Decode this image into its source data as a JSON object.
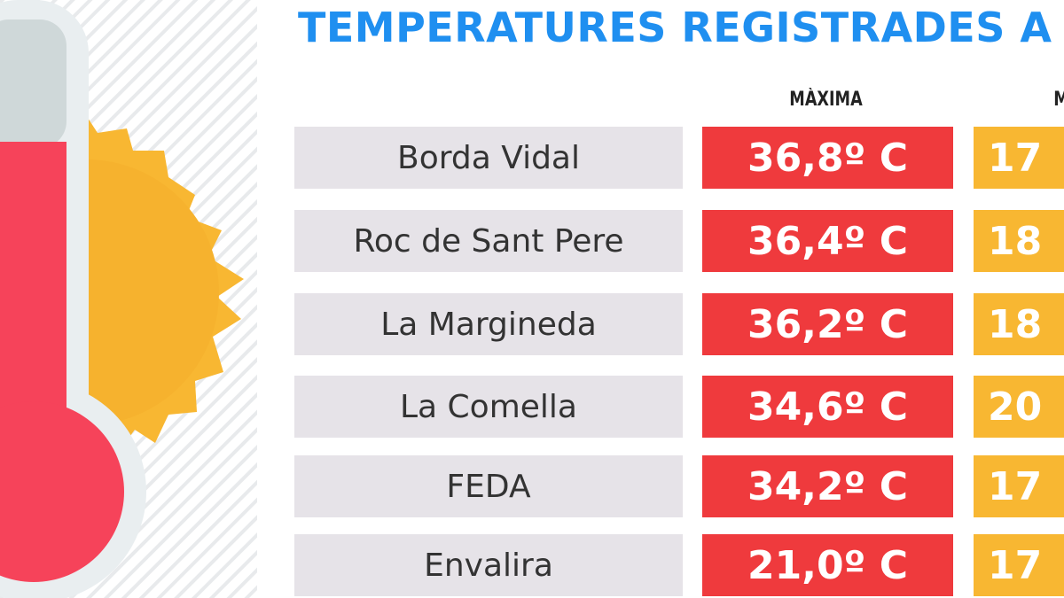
{
  "title": "TEMPERATURES REGISTRADES A",
  "columns": {
    "max": "MÀXIMA",
    "min": "M"
  },
  "colors": {
    "title": "#1f8ff0",
    "max": "#ef3a3d",
    "min": "#f8b732",
    "name_bg": "#e6e3e8",
    "thermometer": "#f6435a",
    "sun": "#f8b732"
  },
  "icons": [
    "thermometer-icon",
    "sun-icon"
  ],
  "rows": [
    {
      "name": "Borda Vidal",
      "max": "36,8º C",
      "min": "17"
    },
    {
      "name": "Roc de Sant Pere",
      "max": "36,4º C",
      "min": "18"
    },
    {
      "name": "La Margineda",
      "max": "36,2º C",
      "min": "18"
    },
    {
      "name": "La Comella",
      "max": "34,6º C",
      "min": "20"
    },
    {
      "name": "FEDA",
      "max": "34,2º C",
      "min": "17"
    },
    {
      "name": "Envalira",
      "max": "21,0º C",
      "min": "17"
    }
  ]
}
